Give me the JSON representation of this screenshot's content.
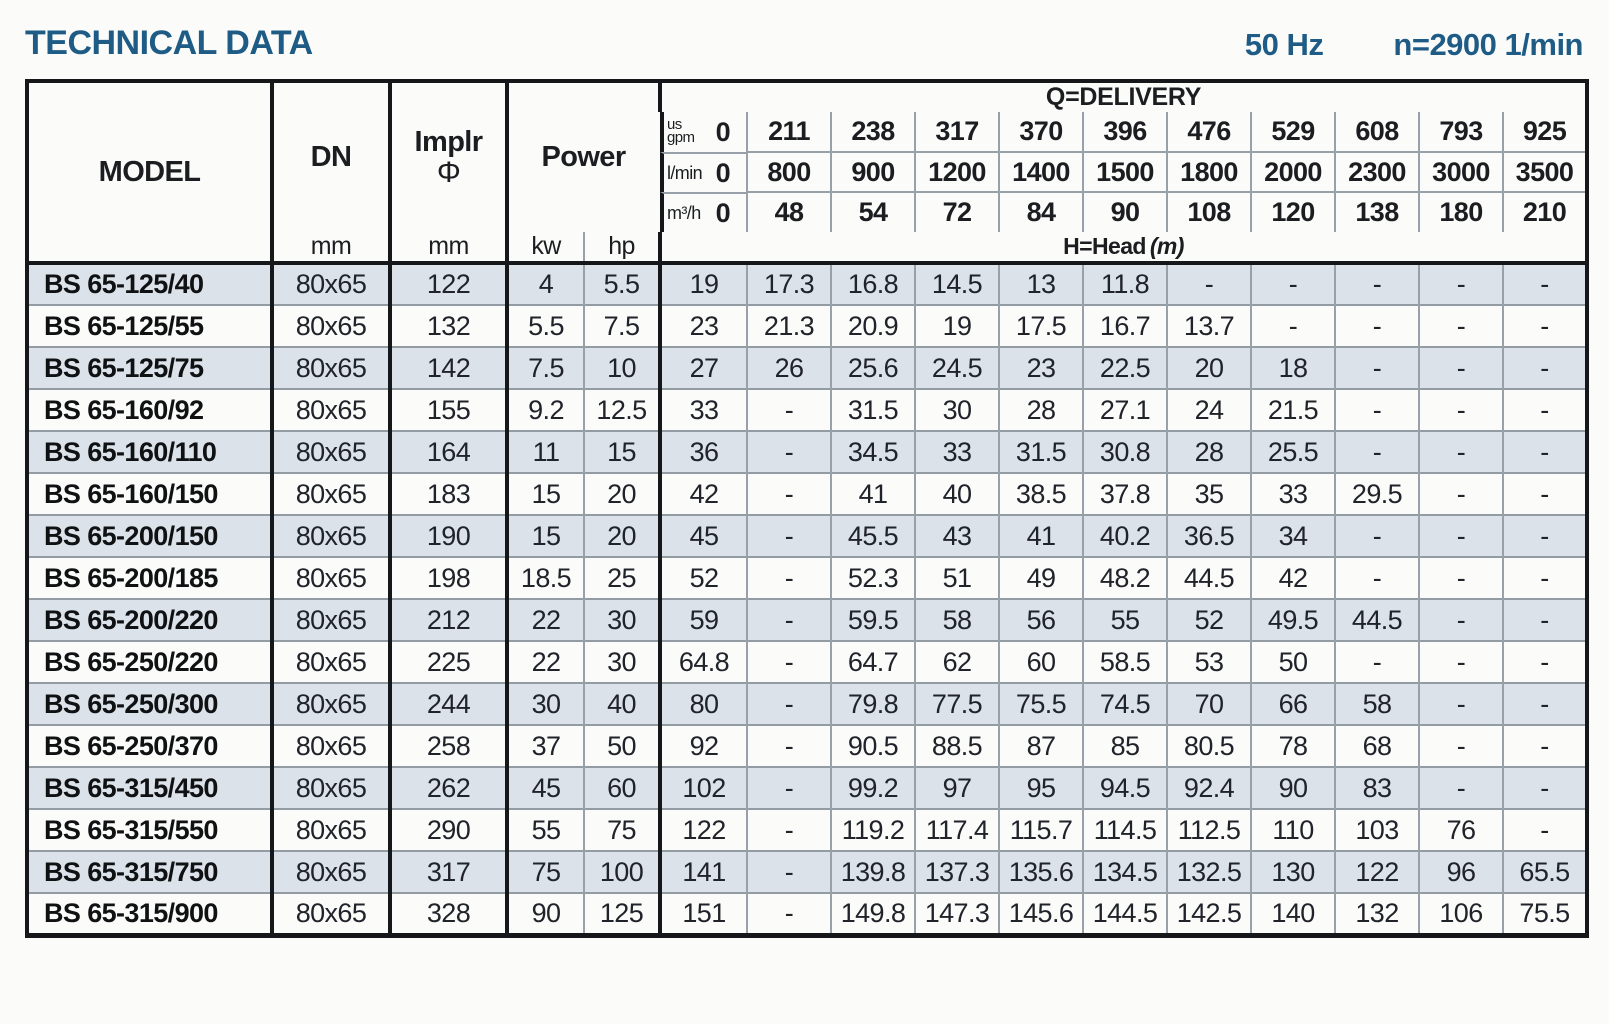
{
  "title": "TECHNICAL DATA",
  "frequency": "50 Hz",
  "speed": "n=2900 1/min",
  "table": {
    "headers": {
      "model": "MODEL",
      "dn": "DN",
      "dn_unit": "mm",
      "impeller_line1": "Implr",
      "impeller_symbol": "Φ",
      "impeller_unit": "mm",
      "power": "Power",
      "power_kw": "kw",
      "power_hp": "hp",
      "delivery_title": "Q=DELIVERY",
      "head_label": "H=Head",
      "head_unit": "(m)",
      "unit_rows": [
        {
          "label_top": "us",
          "label": "gpm",
          "values": [
            "0",
            "211",
            "238",
            "317",
            "370",
            "396",
            "476",
            "529",
            "608",
            "793",
            "925"
          ]
        },
        {
          "label": "l/min",
          "values": [
            "0",
            "800",
            "900",
            "1200",
            "1400",
            "1500",
            "1800",
            "2000",
            "2300",
            "3000",
            "3500"
          ]
        },
        {
          "label": "m³/h",
          "values": [
            "0",
            "48",
            "54",
            "72",
            "84",
            "90",
            "108",
            "120",
            "138",
            "180",
            "210"
          ]
        }
      ]
    },
    "rows": [
      {
        "model": "BS 65-125/40",
        "dn": "80x65",
        "impeller": "122",
        "kw": "4",
        "hp": "5.5",
        "head": [
          "19",
          "17.3",
          "16.8",
          "14.5",
          "13",
          "11.8",
          "-",
          "-",
          "-",
          "-",
          "-"
        ]
      },
      {
        "model": "BS 65-125/55",
        "dn": "80x65",
        "impeller": "132",
        "kw": "5.5",
        "hp": "7.5",
        "head": [
          "23",
          "21.3",
          "20.9",
          "19",
          "17.5",
          "16.7",
          "13.7",
          "-",
          "-",
          "-",
          "-"
        ]
      },
      {
        "model": "BS 65-125/75",
        "dn": "80x65",
        "impeller": "142",
        "kw": "7.5",
        "hp": "10",
        "head": [
          "27",
          "26",
          "25.6",
          "24.5",
          "23",
          "22.5",
          "20",
          "18",
          "-",
          "-",
          "-"
        ]
      },
      {
        "model": "BS 65-160/92",
        "dn": "80x65",
        "impeller": "155",
        "kw": "9.2",
        "hp": "12.5",
        "head": [
          "33",
          "-",
          "31.5",
          "30",
          "28",
          "27.1",
          "24",
          "21.5",
          "-",
          "-",
          "-"
        ]
      },
      {
        "model": "BS 65-160/110",
        "dn": "80x65",
        "impeller": "164",
        "kw": "11",
        "hp": "15",
        "head": [
          "36",
          "-",
          "34.5",
          "33",
          "31.5",
          "30.8",
          "28",
          "25.5",
          "-",
          "-",
          "-"
        ]
      },
      {
        "model": "BS 65-160/150",
        "dn": "80x65",
        "impeller": "183",
        "kw": "15",
        "hp": "20",
        "head": [
          "42",
          "-",
          "41",
          "40",
          "38.5",
          "37.8",
          "35",
          "33",
          "29.5",
          "-",
          "-"
        ]
      },
      {
        "model": "BS 65-200/150",
        "dn": "80x65",
        "impeller": "190",
        "kw": "15",
        "hp": "20",
        "head": [
          "45",
          "-",
          "45.5",
          "43",
          "41",
          "40.2",
          "36.5",
          "34",
          "-",
          "-",
          "-"
        ]
      },
      {
        "model": "BS 65-200/185",
        "dn": "80x65",
        "impeller": "198",
        "kw": "18.5",
        "hp": "25",
        "head": [
          "52",
          "-",
          "52.3",
          "51",
          "49",
          "48.2",
          "44.5",
          "42",
          "-",
          "-",
          "-"
        ]
      },
      {
        "model": "BS 65-200/220",
        "dn": "80x65",
        "impeller": "212",
        "kw": "22",
        "hp": "30",
        "head": [
          "59",
          "-",
          "59.5",
          "58",
          "56",
          "55",
          "52",
          "49.5",
          "44.5",
          "-",
          "-"
        ]
      },
      {
        "model": "BS 65-250/220",
        "dn": "80x65",
        "impeller": "225",
        "kw": "22",
        "hp": "30",
        "head": [
          "64.8",
          "-",
          "64.7",
          "62",
          "60",
          "58.5",
          "53",
          "50",
          "-",
          "-",
          "-"
        ]
      },
      {
        "model": "BS 65-250/300",
        "dn": "80x65",
        "impeller": "244",
        "kw": "30",
        "hp": "40",
        "head": [
          "80",
          "-",
          "79.8",
          "77.5",
          "75.5",
          "74.5",
          "70",
          "66",
          "58",
          "-",
          "-"
        ]
      },
      {
        "model": "BS 65-250/370",
        "dn": "80x65",
        "impeller": "258",
        "kw": "37",
        "hp": "50",
        "head": [
          "92",
          "-",
          "90.5",
          "88.5",
          "87",
          "85",
          "80.5",
          "78",
          "68",
          "-",
          "-"
        ]
      },
      {
        "model": "BS 65-315/450",
        "dn": "80x65",
        "impeller": "262",
        "kw": "45",
        "hp": "60",
        "head": [
          "102",
          "-",
          "99.2",
          "97",
          "95",
          "94.5",
          "92.4",
          "90",
          "83",
          "-",
          "-"
        ]
      },
      {
        "model": "BS 65-315/550",
        "dn": "80x65",
        "impeller": "290",
        "kw": "55",
        "hp": "75",
        "head": [
          "122",
          "-",
          "119.2",
          "117.4",
          "115.7",
          "114.5",
          "112.5",
          "110",
          "103",
          "76",
          "-"
        ]
      },
      {
        "model": "BS 65-315/750",
        "dn": "80x65",
        "impeller": "317",
        "kw": "75",
        "hp": "100",
        "head": [
          "141",
          "-",
          "139.8",
          "137.3",
          "135.6",
          "134.5",
          "132.5",
          "130",
          "122",
          "96",
          "65.5"
        ]
      },
      {
        "model": "BS 65-315/900",
        "dn": "80x65",
        "impeller": "328",
        "kw": "90",
        "hp": "125",
        "head": [
          "151",
          "-",
          "149.8",
          "147.3",
          "145.6",
          "144.5",
          "142.5",
          "140",
          "132",
          "106",
          "75.5"
        ]
      }
    ]
  }
}
